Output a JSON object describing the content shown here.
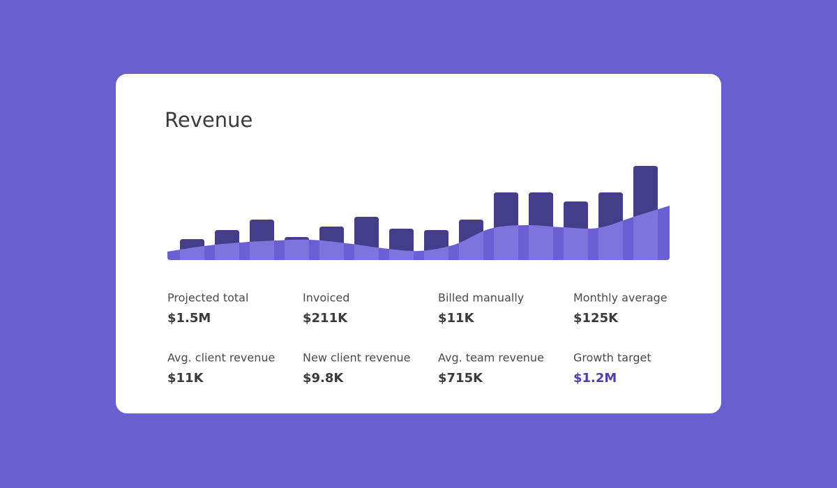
{
  "chart_data": {
    "type": "bar",
    "title": "Revenue",
    "series": [
      {
        "color": "#443d8a",
        "values": [
          30,
          43,
          58,
          33,
          48,
          62,
          45,
          43,
          58,
          97,
          97,
          84,
          97,
          135
        ]
      },
      {
        "type": "area",
        "color": "#6b60d3",
        "values": [
          12,
          20,
          25,
          28,
          29,
          24,
          17,
          13,
          22,
          45,
          50,
          47,
          46,
          62,
          78
        ]
      }
    ],
    "ylim": [
      0,
      140
    ]
  },
  "stats": [
    {
      "label": "Projected total",
      "value": "$1.5M"
    },
    {
      "label": "Invoiced",
      "value": "$211K"
    },
    {
      "label": "Billed manually",
      "value": "$11K"
    },
    {
      "label": "Monthly average",
      "value": "$125K"
    },
    {
      "label": "Avg. client revenue",
      "value": "$11K"
    },
    {
      "label": "New client revenue",
      "value": "$9.8K"
    },
    {
      "label": "Avg. team revenue",
      "value": "$715K"
    },
    {
      "label": "Growth target",
      "value": "$1.2M",
      "color": "#4a3fb3"
    }
  ]
}
